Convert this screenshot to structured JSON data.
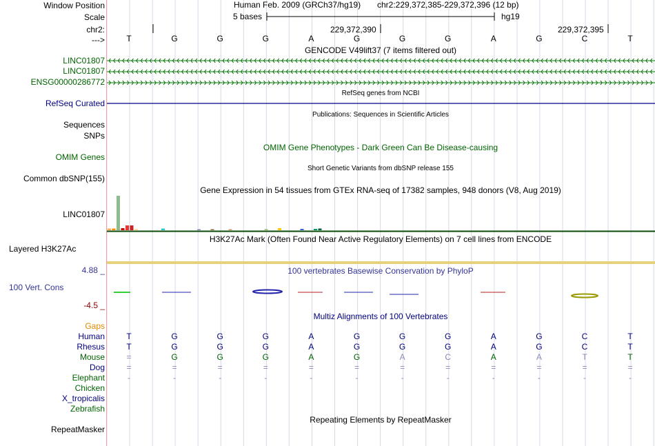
{
  "header": {
    "window_position_label": "Window Position",
    "scale_label": "Scale",
    "chrom_label": "chr2:",
    "arrow_label": "--->",
    "assembly_text": "Human Feb. 2009 (GRCh37/hg19)",
    "position_text": "chr2:229,372,385-229,372,396 (12 bp)",
    "scale_bases": "5 bases",
    "scale_db": "hg19",
    "coord_1": "229,372,390",
    "coord_2": "229,372,395"
  },
  "bases": [
    "T",
    "G",
    "G",
    "G",
    "A",
    "G",
    "G",
    "G",
    "A",
    "G",
    "C",
    "T"
  ],
  "tracks": {
    "gencode_title": "GENCODE V49lift37 (7 items filtered out)",
    "gencode_items": [
      "LINC01807",
      "LINC01807",
      "ENSG00000286772"
    ],
    "refseq_title": "RefSeq genes from NCBI",
    "refseq_label": "RefSeq Curated",
    "pubs_title": "Publications: Sequences in Scientific Articles",
    "sequences_label": "Sequences",
    "snps_label": "SNPs",
    "omim_title": "OMIM Gene Phenotypes - Dark Green Can Be Disease-causing",
    "omim_label": "OMIM Genes",
    "dbsnp_title": "Short Genetic Variants from dbSNP release 155",
    "dbsnp_label": "Common dbSNP(155)",
    "gtex_title": "Gene Expression in 54 tissues from GTEx RNA-seq of 17382 samples, 948 donors (V8, Aug 2019)",
    "gtex_label": "LINC01807",
    "h3k27_title": "H3K27Ac Mark (Often Found Near Active Regulatory Elements) on 7 cell lines from ENCODE",
    "h3k27_label": "Layered H3K27Ac",
    "cons_title": "100 vertebrates Basewise Conservation by PhyloP",
    "cons_max": "4.88 _",
    "cons_label": "100 Vert. Cons",
    "cons_min": "-4.5 _",
    "gaps_label": "Gaps",
    "multiz_title": "Multiz Alignments of 100 Vertebrates",
    "repeat_title": "Repeating Elements by RepeatMasker",
    "repeat_label": "RepeatMasker"
  },
  "species": [
    {
      "name": "Human",
      "color": "#000080",
      "bases": [
        "T",
        "G",
        "G",
        "G",
        "A",
        "G",
        "G",
        "G",
        "A",
        "G",
        "C",
        "T"
      ],
      "faint": []
    },
    {
      "name": "Rhesus",
      "color": "#000080",
      "bases": [
        "T",
        "G",
        "G",
        "G",
        "A",
        "G",
        "G",
        "G",
        "A",
        "G",
        "C",
        "T"
      ],
      "faint": []
    },
    {
      "name": "Mouse",
      "color": "#006400",
      "bases": [
        "=",
        "G",
        "G",
        "G",
        "A",
        "G",
        "A",
        "C",
        "A",
        "A",
        "T",
        "T"
      ],
      "faint": [
        0,
        6,
        7,
        9,
        10
      ]
    },
    {
      "name": "Dog",
      "color": "#000080",
      "bases": [
        "=",
        "=",
        "=",
        "=",
        "=",
        "=",
        "=",
        "=",
        "=",
        "=",
        "=",
        "="
      ],
      "faint": [
        0,
        1,
        2,
        3,
        4,
        5,
        6,
        7,
        8,
        9,
        10,
        11
      ]
    },
    {
      "name": "Elephant",
      "color": "#006400",
      "bases": [
        "-",
        "-",
        "-",
        "-",
        "-",
        "-",
        "-",
        "-",
        "-",
        "-",
        "-",
        "-"
      ],
      "faint": [
        0,
        1,
        2,
        3,
        4,
        5,
        6,
        7,
        8,
        9,
        10,
        11
      ]
    },
    {
      "name": "Chicken",
      "color": "#006400",
      "bases": [],
      "faint": []
    },
    {
      "name": "X_tropicalis",
      "color": "#000080",
      "bases": [],
      "faint": []
    },
    {
      "name": "Zebrafish",
      "color": "#006400",
      "bases": [],
      "faint": []
    }
  ],
  "gtex_bars": [
    {
      "tissue_index": 0,
      "value": 0.05,
      "color": "#ffaa55"
    },
    {
      "tissue_index": 1,
      "value": 0.05,
      "color": "#ff8800"
    },
    {
      "tissue_index": 2,
      "value": 1.0,
      "color": "#8fbc8f"
    },
    {
      "tissue_index": 3,
      "value": 0.06,
      "color": "#cc0000"
    },
    {
      "tissue_index": 4,
      "value": 0.14,
      "color": "#ee3333"
    },
    {
      "tissue_index": 5,
      "value": 0.14,
      "color": "#cc2222"
    },
    {
      "tissue_index": 6,
      "value": 0.04,
      "color": "#ffdd99"
    },
    {
      "tissue_index": 12,
      "value": 0.05,
      "color": "#22cccc"
    },
    {
      "tissue_index": 20,
      "value": 0.03,
      "color": "#8888cc"
    },
    {
      "tissue_index": 23,
      "value": 0.03,
      "color": "#996633"
    },
    {
      "tissue_index": 27,
      "value": 0.03,
      "color": "#cc9966"
    },
    {
      "tissue_index": 35,
      "value": 0.04,
      "color": "#aacc88"
    },
    {
      "tissue_index": 38,
      "value": 0.06,
      "color": "#ffcc00"
    },
    {
      "tissue_index": 43,
      "value": 0.04,
      "color": "#3366cc"
    },
    {
      "tissue_index": 46,
      "value": 0.04,
      "color": "#009966"
    },
    {
      "tissue_index": 47,
      "value": 0.05,
      "color": "#006633"
    }
  ],
  "colors": {
    "gencode": "#0c7a0c",
    "refseq": "#000080",
    "grid": "#d8d8e8",
    "h3k27": "#e6d27a",
    "gtex_baseline": "#0a4a0a",
    "cons_pos": "#2222aa",
    "cons_neg": "#b22222"
  }
}
